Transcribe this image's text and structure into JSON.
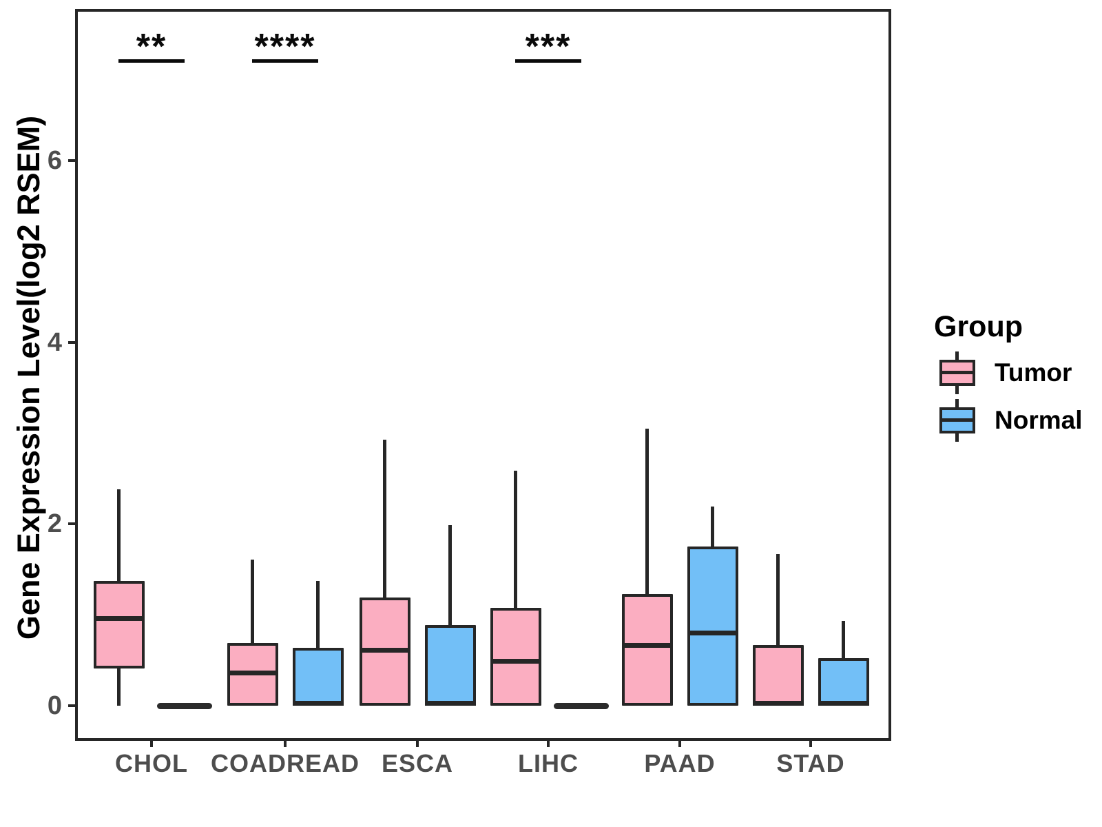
{
  "figure": {
    "background": "#ffffff"
  },
  "colors": {
    "tumor_fill": "#FBAEC1",
    "normal_fill": "#72BFF7",
    "box_line": "#262626",
    "axis_text": "#4d4d4d",
    "title_text": "#000000",
    "significance": "#0a0a0a"
  },
  "y_axis": {
    "title": "Gene Expression Level(log2 RSEM)",
    "tick_labels": [
      "0",
      "2",
      "4",
      "6"
    ]
  },
  "x_axis": {
    "labels": [
      "CHOL",
      "COADREAD",
      "ESCA",
      "LIHC",
      "PAAD",
      "STAD"
    ]
  },
  "legend": {
    "title": "Group",
    "entries": [
      {
        "label": "Tumor",
        "color": "#FBAEC1"
      },
      {
        "label": "Normal",
        "color": "#72BFF7"
      }
    ]
  },
  "chart_data": {
    "type": "boxplot",
    "title": "",
    "xlabel": "",
    "ylabel": "Gene Expression Level(log2 RSEM)",
    "categories": [
      "CHOL",
      "COADREAD",
      "ESCA",
      "LIHC",
      "PAAD",
      "STAD"
    ],
    "yticks": [
      0,
      2,
      4,
      6
    ],
    "ylim": [
      -0.36,
      7.64
    ],
    "grid": false,
    "legend_position": "right",
    "groups": [
      {
        "name": "Tumor",
        "fill": "#FBAEC1"
      },
      {
        "name": "Normal",
        "fill": "#72BFF7"
      }
    ],
    "series": [
      {
        "name": "Tumor",
        "boxes": [
          {
            "category": "CHOL",
            "whisker_low": 0,
            "q1": 0.41,
            "median": 0.96,
            "q3": 1.37,
            "whisker_high": 2.38
          },
          {
            "category": "COADREAD",
            "whisker_low": 0,
            "q1": 0,
            "median": 0.36,
            "q3": 0.69,
            "whisker_high": 1.61
          },
          {
            "category": "ESCA",
            "whisker_low": 0,
            "q1": 0,
            "median": 0.61,
            "q3": 1.19,
            "whisker_high": 2.93
          },
          {
            "category": "LIHC",
            "whisker_low": 0,
            "q1": 0,
            "median": 0.49,
            "q3": 1.08,
            "whisker_high": 2.59
          },
          {
            "category": "PAAD",
            "whisker_low": 0,
            "q1": 0,
            "median": 0.66,
            "q3": 1.23,
            "whisker_high": 3.05
          },
          {
            "category": "STAD",
            "whisker_low": 0,
            "q1": 0,
            "median": 0,
            "q3": 0.67,
            "whisker_high": 1.67
          }
        ]
      },
      {
        "name": "Normal",
        "boxes": [
          {
            "category": "CHOL",
            "whisker_low": 0,
            "q1": 0,
            "median": 0,
            "q3": 0,
            "whisker_high": 0
          },
          {
            "category": "COADREAD",
            "whisker_low": 0,
            "q1": 0,
            "median": 0,
            "q3": 0.64,
            "whisker_high": 1.37
          },
          {
            "category": "ESCA",
            "whisker_low": 0,
            "q1": 0,
            "median": 0,
            "q3": 0.89,
            "whisker_high": 1.99
          },
          {
            "category": "LIHC",
            "whisker_low": 0,
            "q1": 0,
            "median": 0,
            "q3": 0,
            "whisker_high": 0
          },
          {
            "category": "PAAD",
            "whisker_low": 0,
            "q1": 0,
            "median": 0.8,
            "q3": 1.75,
            "whisker_high": 2.19
          },
          {
            "category": "STAD",
            "whisker_low": 0,
            "q1": 0,
            "median": 0,
            "q3": 0.52,
            "whisker_high": 0.93
          }
        ]
      }
    ],
    "significance": [
      {
        "category": "CHOL",
        "label": "**"
      },
      {
        "category": "COADREAD",
        "label": "****"
      },
      {
        "category": "LIHC",
        "label": "***"
      }
    ]
  }
}
